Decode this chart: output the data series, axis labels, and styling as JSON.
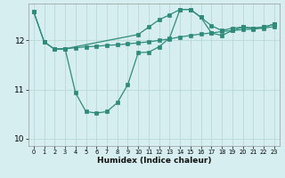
{
  "xlabel": "Humidex (Indice chaleur)",
  "bg_color": "#d6eef0",
  "grid_color": "#b8d8da",
  "line_color": "#2e8b7a",
  "xlim": [
    -0.5,
    23.5
  ],
  "ylim": [
    9.85,
    12.75
  ],
  "yticks": [
    10,
    11,
    12
  ],
  "xticks": [
    0,
    1,
    2,
    3,
    4,
    5,
    6,
    7,
    8,
    9,
    10,
    11,
    12,
    13,
    14,
    15,
    16,
    17,
    18,
    19,
    20,
    21,
    22,
    23
  ],
  "lines": [
    {
      "x": [
        0,
        1,
        2,
        3,
        4,
        5,
        6,
        7,
        8,
        9,
        10,
        11,
        12,
        13,
        14,
        15,
        16,
        17,
        18,
        19,
        20,
        21,
        22,
        23
      ],
      "y": [
        12.58,
        11.97,
        11.82,
        11.83,
        11.85,
        11.87,
        11.88,
        11.9,
        11.91,
        11.93,
        11.95,
        11.97,
        12.0,
        12.03,
        12.07,
        12.1,
        12.13,
        12.15,
        12.18,
        12.2,
        12.22,
        12.23,
        12.25,
        12.28
      ]
    },
    {
      "x": [
        0,
        1,
        2,
        3,
        10,
        11,
        12,
        13,
        14,
        15,
        16,
        17,
        18,
        19,
        20,
        21,
        22,
        23
      ],
      "y": [
        12.58,
        11.97,
        11.82,
        11.83,
        12.12,
        12.27,
        12.42,
        12.52,
        12.63,
        12.63,
        12.47,
        12.3,
        12.2,
        12.25,
        12.27,
        12.25,
        12.27,
        12.33
      ]
    },
    {
      "x": [
        2,
        3,
        4,
        5,
        6,
        7,
        8,
        9,
        10,
        11,
        12,
        13,
        14,
        15,
        16,
        17,
        18,
        19,
        20,
        21,
        22,
        23
      ],
      "y": [
        11.82,
        11.83,
        10.93,
        10.55,
        10.52,
        10.55,
        10.73,
        11.1,
        11.75,
        11.76,
        11.87,
        12.05,
        12.63,
        12.63,
        12.47,
        12.15,
        12.1,
        12.2,
        12.27,
        12.25,
        12.27,
        12.33
      ]
    }
  ]
}
